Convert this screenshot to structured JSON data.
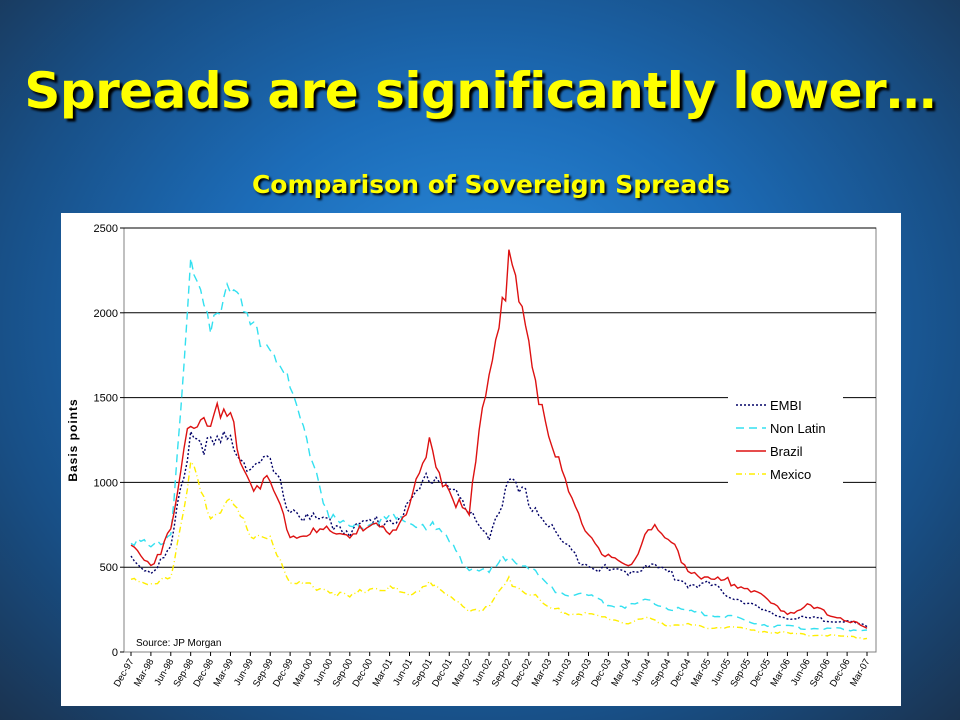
{
  "slide": {
    "title": "Spreads are significantly lower…"
  },
  "chart_data": {
    "type": "line",
    "title": "Comparison of Sovereign Spreads",
    "xlabel": "",
    "ylabel": "Basis points",
    "ylim": [
      0,
      2500
    ],
    "yticks": [
      0,
      500,
      1000,
      1500,
      2000,
      2500
    ],
    "grid": "horizontal",
    "legend_position": "right",
    "source": "Source: JP Morgan",
    "x": [
      "Dec-97",
      "Mar-98",
      "Jun-98",
      "Sep-98",
      "Dec-98",
      "Mar-99",
      "Jun-99",
      "Sep-99",
      "Dec-99",
      "Mar-00",
      "Jun-00",
      "Sep-00",
      "Dec-00",
      "Mar-01",
      "Jun-01",
      "Sep-01",
      "Dec-01",
      "Mar-02",
      "Jun-02",
      "Sep-02",
      "Dec-02",
      "Mar-03",
      "Jun-03",
      "Sep-03",
      "Dec-03",
      "Mar-04",
      "Jun-04",
      "Sep-04",
      "Dec-04",
      "Mar-05",
      "Jun-05",
      "Sep-05",
      "Dec-05",
      "Mar-06",
      "Jun-06",
      "Sep-06",
      "Dec-06",
      "Mar-07"
    ],
    "series": [
      {
        "name": "EMBI",
        "color": "#000066",
        "dash": "2,2",
        "values": [
          560,
          470,
          600,
          1300,
          1200,
          1250,
          1100,
          1100,
          850,
          780,
          760,
          720,
          760,
          780,
          850,
          1050,
          1000,
          800,
          700,
          980,
          900,
          750,
          600,
          520,
          480,
          470,
          520,
          470,
          400,
          400,
          340,
          290,
          230,
          200,
          200,
          190,
          180,
          150
        ]
      },
      {
        "name": "Non Latin",
        "color": "#33e0f0",
        "dash": "8,5",
        "values": [
          680,
          600,
          700,
          2200,
          1950,
          2250,
          1850,
          1880,
          1500,
          1200,
          780,
          720,
          760,
          780,
          760,
          750,
          650,
          500,
          460,
          580,
          500,
          380,
          350,
          330,
          280,
          270,
          300,
          260,
          240,
          220,
          210,
          180,
          160,
          150,
          140,
          140,
          130,
          130
        ]
      },
      {
        "name": "Brazil",
        "color": "#dd1111",
        "dash": "",
        "values": [
          620,
          520,
          700,
          1400,
          1400,
          1350,
          1000,
          1000,
          700,
          700,
          700,
          700,
          720,
          720,
          850,
          1200,
          950,
          800,
          1700,
          2300,
          1800,
          1300,
          900,
          700,
          550,
          480,
          750,
          650,
          500,
          420,
          420,
          380,
          300,
          230,
          270,
          230,
          190,
          140
        ]
      },
      {
        "name": "Mexico",
        "color": "#ffee00",
        "dash": "6,3,1,3",
        "values": [
          450,
          380,
          450,
          1100,
          750,
          950,
          650,
          700,
          400,
          400,
          360,
          320,
          380,
          380,
          330,
          420,
          320,
          250,
          260,
          420,
          350,
          260,
          230,
          220,
          200,
          170,
          200,
          160,
          160,
          140,
          150,
          130,
          120,
          110,
          100,
          100,
          90,
          80
        ]
      }
    ]
  }
}
